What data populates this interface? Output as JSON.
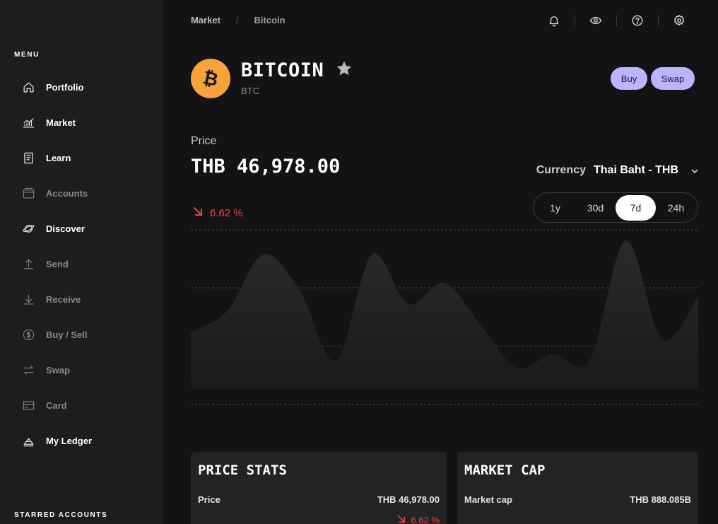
{
  "sidebar": {
    "menu_title": "MENU",
    "items": [
      {
        "label": "Portfolio",
        "icon": "home-icon",
        "state": "active"
      },
      {
        "label": "Market",
        "icon": "chart-icon",
        "state": "active"
      },
      {
        "label": "Learn",
        "icon": "book-icon",
        "state": "active"
      },
      {
        "label": "Accounts",
        "icon": "wallet-icon",
        "state": "dim"
      },
      {
        "label": "Discover",
        "icon": "planet-icon",
        "state": "active"
      },
      {
        "label": "Send",
        "icon": "upload-icon",
        "state": "dim"
      },
      {
        "label": "Receive",
        "icon": "download-icon",
        "state": "dim"
      },
      {
        "label": "Buy / Sell",
        "icon": "coin-icon",
        "state": "dim"
      },
      {
        "label": "Swap",
        "icon": "swap-icon",
        "state": "dim"
      },
      {
        "label": "Card",
        "icon": "card-icon",
        "state": "dim"
      },
      {
        "label": "My Ledger",
        "icon": "ledger-icon",
        "state": "active"
      }
    ],
    "starred_title": "STARRED ACCOUNTS"
  },
  "header": {
    "breadcrumb": [
      "Market",
      "Bitcoin"
    ],
    "icons": [
      "bell-icon",
      "eye-icon",
      "help-icon",
      "settings-icon"
    ]
  },
  "coin": {
    "name": "BITCOIN",
    "ticker": "BTC",
    "logo_color": "#f7a33a",
    "buy_label": "Buy",
    "swap_label": "Swap"
  },
  "price": {
    "label": "Price",
    "value": "THB 46,978.00",
    "change": "6.62 %",
    "change_color": "#e8424b"
  },
  "currency": {
    "label": "Currency",
    "value": "Thai Baht - THB"
  },
  "ranges": [
    "1y",
    "30d",
    "7d",
    "24h"
  ],
  "selected_range": "7d",
  "chart_data": {
    "type": "area",
    "values": [
      0.3,
      0.45,
      0.85,
      0.6,
      0.1,
      0.85,
      0.5,
      0.65,
      0.35,
      0.05,
      0.15,
      0.1,
      0.95,
      0.25,
      0.55
    ]
  },
  "cards": {
    "price_stats": {
      "title": "PRICE STATS",
      "row_label": "Price",
      "row_value": "THB 46,978.00",
      "change": "6.62 %"
    },
    "market_cap": {
      "title": "MARKET CAP",
      "row_label": "Market cap",
      "row_value": "THB 888.085B"
    }
  }
}
